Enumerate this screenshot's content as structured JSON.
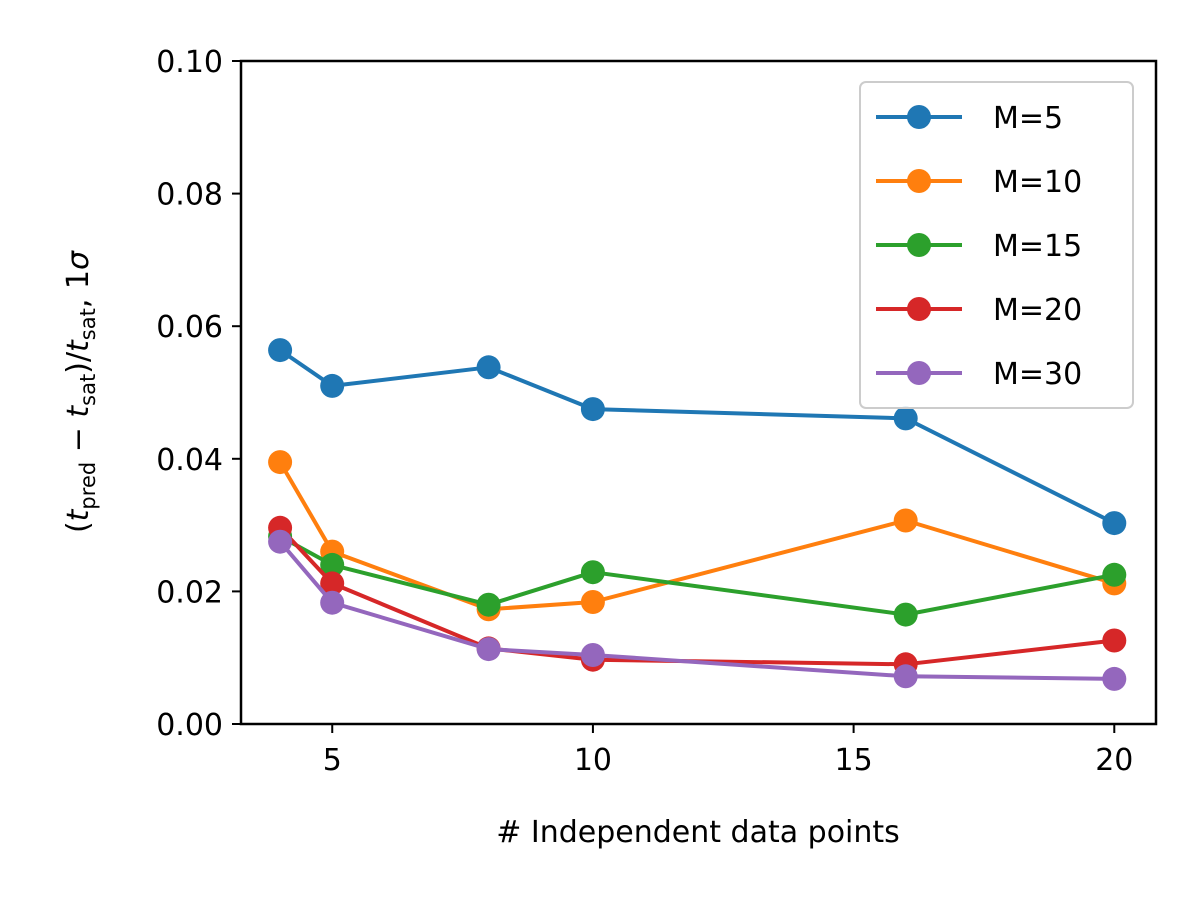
{
  "chart_data": {
    "type": "line",
    "title": "",
    "xlabel": "# Independent data points",
    "ylabel": "(t_pred − t_sat)/t_sat, 1σ",
    "ylabel_parts": {
      "open": "(",
      "t1": "t",
      "sub1": "pred",
      "minus": " − ",
      "t2": "t",
      "sub2": "sat",
      "close_slash": ")/",
      "t3": "t",
      "sub3": "sat",
      "tail": ", 1",
      "sigma": "σ"
    },
    "xlim": [
      3.25,
      20.8
    ],
    "ylim": [
      0.0,
      0.1
    ],
    "xticks": [
      5,
      10,
      15,
      20
    ],
    "xtick_labels": [
      "5",
      "10",
      "15",
      "20"
    ],
    "yticks": [
      0.0,
      0.02,
      0.04,
      0.06,
      0.08,
      0.1
    ],
    "ytick_labels": [
      "0.00",
      "0.02",
      "0.04",
      "0.06",
      "0.08",
      "0.10"
    ],
    "grid": false,
    "legend_position": "top-right",
    "x": [
      4,
      5,
      8,
      10,
      16,
      20
    ],
    "series": [
      {
        "name": "M=5",
        "color": "#1f77b4",
        "values": [
          0.0564,
          0.051,
          0.0538,
          0.0475,
          0.0461,
          0.0303
        ]
      },
      {
        "name": "M=10",
        "color": "#ff7f0e",
        "values": [
          0.0395,
          0.026,
          0.0173,
          0.0184,
          0.0307,
          0.0212
        ]
      },
      {
        "name": "M=15",
        "color": "#2ca02c",
        "values": [
          0.0283,
          0.024,
          0.018,
          0.0229,
          0.0165,
          0.0225
        ]
      },
      {
        "name": "M=20",
        "color": "#d62728",
        "values": [
          0.0296,
          0.0212,
          0.0114,
          0.0097,
          0.009,
          0.0126
        ]
      },
      {
        "name": "M=30",
        "color": "#9467bd",
        "values": [
          0.0275,
          0.0183,
          0.0113,
          0.0104,
          0.0072,
          0.0068
        ]
      }
    ]
  }
}
